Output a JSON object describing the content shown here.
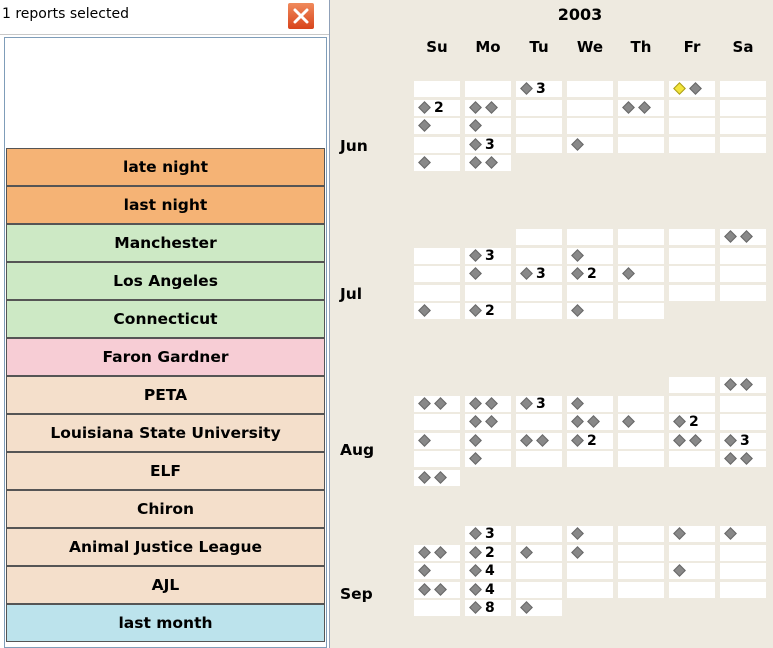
{
  "selection": {
    "text": "1 reports selected",
    "close_icon": "close-icon"
  },
  "categories": [
    {
      "label": "late night",
      "color": "#f5b375"
    },
    {
      "label": "last night",
      "color": "#f5b375"
    },
    {
      "label": "Manchester",
      "color": "#cde9c5"
    },
    {
      "label": "Los Angeles",
      "color": "#cde9c5"
    },
    {
      "label": "Connecticut",
      "color": "#cde9c5"
    },
    {
      "label": "Faron Gardner",
      "color": "#f7cdd5"
    },
    {
      "label": "PETA",
      "color": "#f4dfcb"
    },
    {
      "label": "Louisiana State University",
      "color": "#f4dfcb"
    },
    {
      "label": "ELF",
      "color": "#f4dfcb"
    },
    {
      "label": "Chiron",
      "color": "#f4dfcb"
    },
    {
      "label": "Animal Justice League",
      "color": "#f4dfcb"
    },
    {
      "label": "AJL",
      "color": "#f4dfcb"
    },
    {
      "label": "last month",
      "color": "#bce3ec"
    }
  ],
  "calendar": {
    "year": "2003",
    "days": [
      "Su",
      "Mo",
      "Tu",
      "We",
      "Th",
      "Fr",
      "Sa"
    ],
    "months": [
      {
        "label": "Jun",
        "weeks": [
          [
            {
              "d": 0
            },
            {
              "d": 0
            },
            {
              "d": 1,
              "n": "3"
            },
            {
              "d": 0
            },
            {
              "d": 0
            },
            {
              "d": 2,
              "hl": true
            },
            {
              "d": 0
            }
          ],
          [
            {
              "d": 1,
              "n": "2"
            },
            {
              "d": 2
            },
            {
              "d": 0
            },
            {
              "d": 0
            },
            {
              "d": 2
            },
            {
              "d": 0
            },
            {
              "d": 0
            }
          ],
          [
            {
              "d": 1
            },
            {
              "d": 1
            },
            {
              "d": 0
            },
            {
              "d": 0
            },
            {
              "d": 0
            },
            {
              "d": 0
            },
            {
              "d": 0
            }
          ],
          [
            {
              "d": 0
            },
            {
              "d": 1,
              "n": "3"
            },
            {
              "d": 0
            },
            {
              "d": 1
            },
            {
              "d": 0
            },
            {
              "d": 0
            },
            {
              "d": 0
            }
          ],
          [
            {
              "d": 1
            },
            {
              "d": 2
            },
            null,
            null,
            null,
            null,
            null
          ]
        ]
      },
      {
        "label": "Jul",
        "weeks": [
          [
            null,
            null,
            {
              "d": 0
            },
            {
              "d": 0
            },
            {
              "d": 0
            },
            {
              "d": 0
            },
            {
              "d": 2
            }
          ],
          [
            {
              "d": 0
            },
            {
              "d": 1,
              "n": "3"
            },
            {
              "d": 0
            },
            {
              "d": 1
            },
            {
              "d": 0
            },
            {
              "d": 0
            },
            {
              "d": 0
            }
          ],
          [
            {
              "d": 0
            },
            {
              "d": 1
            },
            {
              "d": 1,
              "n": "3"
            },
            {
              "d": 1,
              "n": "2"
            },
            {
              "d": 1
            },
            {
              "d": 0
            },
            {
              "d": 0
            }
          ],
          [
            {
              "d": 0
            },
            {
              "d": 0
            },
            {
              "d": 0
            },
            {
              "d": 0
            },
            {
              "d": 0
            },
            {
              "d": 0
            },
            {
              "d": 0
            }
          ],
          [
            {
              "d": 1
            },
            {
              "d": 1,
              "n": "2"
            },
            {
              "d": 0
            },
            {
              "d": 1
            },
            {
              "d": 0
            },
            null,
            null
          ]
        ]
      },
      {
        "label": "Aug",
        "weeks": [
          [
            null,
            null,
            null,
            null,
            null,
            {
              "d": 0
            },
            {
              "d": 2
            }
          ],
          [
            {
              "d": 2
            },
            {
              "d": 2
            },
            {
              "d": 1,
              "n": "3"
            },
            {
              "d": 1
            },
            {
              "d": 0
            },
            {
              "d": 0
            },
            {
              "d": 0
            }
          ],
          [
            {
              "d": 0
            },
            {
              "d": 2
            },
            {
              "d": 0
            },
            {
              "d": 2
            },
            {
              "d": 1
            },
            {
              "d": 1,
              "n": "2"
            },
            {
              "d": 0
            }
          ],
          [
            {
              "d": 1
            },
            {
              "d": 1
            },
            {
              "d": 2
            },
            {
              "d": 1,
              "n": "2"
            },
            {
              "d": 0
            },
            {
              "d": 2
            },
            {
              "d": 1,
              "n": "3"
            }
          ],
          [
            {
              "d": 0
            },
            {
              "d": 1
            },
            {
              "d": 0
            },
            {
              "d": 0
            },
            {
              "d": 0
            },
            {
              "d": 0
            },
            {
              "d": 2
            }
          ],
          [
            {
              "d": 2
            },
            null,
            null,
            null,
            null,
            null,
            null
          ]
        ]
      },
      {
        "label": "Sep",
        "weeks": [
          [
            null,
            {
              "d": 1,
              "n": "3"
            },
            {
              "d": 0
            },
            {
              "d": 1
            },
            {
              "d": 0
            },
            {
              "d": 1
            },
            {
              "d": 1
            }
          ],
          [
            {
              "d": 2
            },
            {
              "d": 1,
              "n": "2"
            },
            {
              "d": 1
            },
            {
              "d": 1
            },
            {
              "d": 0
            },
            {
              "d": 0
            },
            {
              "d": 0
            }
          ],
          [
            {
              "d": 1
            },
            {
              "d": 1,
              "n": "4"
            },
            {
              "d": 0
            },
            {
              "d": 0
            },
            {
              "d": 0
            },
            {
              "d": 1
            },
            {
              "d": 0
            }
          ],
          [
            {
              "d": 2
            },
            {
              "d": 1,
              "n": "4"
            },
            {
              "d": 0
            },
            {
              "d": 0
            },
            {
              "d": 0
            },
            {
              "d": 0
            },
            {
              "d": 0
            }
          ],
          [
            {
              "d": 0
            },
            {
              "d": 1,
              "n": "8"
            },
            {
              "d": 1
            },
            null,
            null,
            null,
            null
          ]
        ]
      }
    ]
  }
}
